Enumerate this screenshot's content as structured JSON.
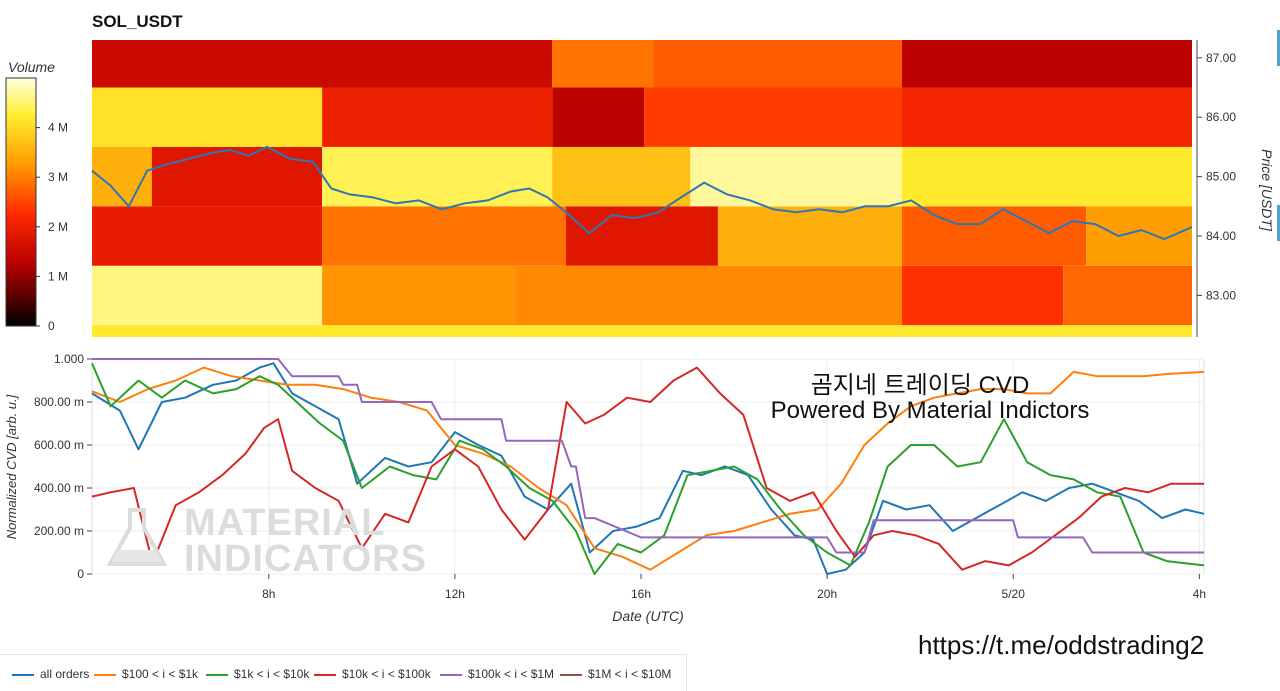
{
  "header": {
    "title": "SOL_USDT"
  },
  "overlay": {
    "line1": "곰지네 트레이딩 CVD",
    "line2": "Powered By Material Indictors",
    "link": "https://t.me/oddstrading2"
  },
  "watermark": {
    "line1": "MATERIAL",
    "line2": "INDICATORS"
  },
  "colors": {
    "all_orders": "#1f77b4",
    "r100_1k": "#ff7f0e",
    "r1k_10k": "#2ca02c",
    "r10k_100k": "#d62728",
    "r100k_1m": "#9467bd",
    "r1m_10m": "#8c564b"
  },
  "chart_data": [
    {
      "type": "heatmap",
      "title": "SOL_USDT",
      "colorbar": {
        "label": "Volume",
        "ticks": [
          "0",
          "1 M",
          "2 M",
          "3 M",
          "4 M"
        ],
        "range": [
          0,
          5000000
        ]
      },
      "y_axis": {
        "label": "Price [USDT]",
        "ticks": [
          "83.00",
          "84.00",
          "85.00",
          "86.00",
          "87.00"
        ],
        "range": [
          82.3,
          87.3
        ]
      },
      "x_range_hours": [
        4.2,
        28.1
      ],
      "price_bands": [
        {
          "low": 82.3,
          "high": 82.5,
          "segments": [
            {
              "start": 4.2,
              "end": 28.1,
              "volume": 4200000
            }
          ]
        },
        {
          "low": 82.5,
          "high": 83.5,
          "segments": [
            {
              "start": 4.2,
              "end": 9.2,
              "volume": 4600000
            },
            {
              "start": 9.2,
              "end": 13.4,
              "volume": 3200000
            },
            {
              "start": 13.4,
              "end": 21.8,
              "volume": 3100000
            },
            {
              "start": 21.8,
              "end": 25.3,
              "volume": 2300000
            },
            {
              "start": 25.3,
              "end": 28.1,
              "volume": 2800000
            }
          ]
        },
        {
          "low": 83.5,
          "high": 84.5,
          "segments": [
            {
              "start": 4.2,
              "end": 9.2,
              "volume": 1900000
            },
            {
              "start": 9.2,
              "end": 14.5,
              "volume": 2900000
            },
            {
              "start": 14.5,
              "end": 17.8,
              "volume": 1800000
            },
            {
              "start": 17.8,
              "end": 21.8,
              "volume": 3500000
            },
            {
              "start": 21.8,
              "end": 25.8,
              "volume": 2700000
            },
            {
              "start": 25.8,
              "end": 28.1,
              "volume": 3300000
            }
          ]
        },
        {
          "low": 84.5,
          "high": 85.5,
          "segments": [
            {
              "start": 4.2,
              "end": 5.5,
              "volume": 3500000
            },
            {
              "start": 5.5,
              "end": 9.2,
              "volume": 1800000
            },
            {
              "start": 9.2,
              "end": 14.2,
              "volume": 4400000
            },
            {
              "start": 14.2,
              "end": 17.2,
              "volume": 3700000
            },
            {
              "start": 17.2,
              "end": 21.8,
              "volume": 4700000
            },
            {
              "start": 21.8,
              "end": 28.1,
              "volume": 4200000
            }
          ]
        },
        {
          "low": 85.5,
          "high": 86.5,
          "segments": [
            {
              "start": 4.2,
              "end": 9.2,
              "volume": 4100000
            },
            {
              "start": 9.2,
              "end": 14.2,
              "volume": 2000000
            },
            {
              "start": 14.2,
              "end": 16.2,
              "volume": 1300000
            },
            {
              "start": 16.2,
              "end": 21.8,
              "volume": 2400000
            },
            {
              "start": 21.8,
              "end": 28.1,
              "volume": 2100000
            }
          ]
        },
        {
          "low": 86.5,
          "high": 87.3,
          "segments": [
            {
              "start": 4.2,
              "end": 14.2,
              "volume": 1500000
            },
            {
              "start": 14.2,
              "end": 16.4,
              "volume": 2900000
            },
            {
              "start": 16.4,
              "end": 21.8,
              "volume": 2700000
            },
            {
              "start": 21.8,
              "end": 28.1,
              "volume": 1300000
            }
          ]
        }
      ],
      "price_line": {
        "color": "#2e77b4",
        "x": [
          4.2,
          4.6,
          5.0,
          5.4,
          5.8,
          6.3,
          6.8,
          7.2,
          7.6,
          8.0,
          8.5,
          9.0,
          9.4,
          9.8,
          10.3,
          10.8,
          11.3,
          11.8,
          12.3,
          12.8,
          13.3,
          13.7,
          14.1,
          14.5,
          15.0,
          15.5,
          16.0,
          16.5,
          17.0,
          17.5,
          18.0,
          18.5,
          19.0,
          19.5,
          20.0,
          20.5,
          21.0,
          21.5,
          22.0,
          22.5,
          23.0,
          23.5,
          24.0,
          24.5,
          25.0,
          25.5,
          26.0,
          26.5,
          27.0,
          27.5,
          28.1
        ],
        "y": [
          85.1,
          84.85,
          84.5,
          85.1,
          85.2,
          85.3,
          85.4,
          85.45,
          85.35,
          85.5,
          85.3,
          85.25,
          84.8,
          84.7,
          84.65,
          84.55,
          84.6,
          84.45,
          84.55,
          84.6,
          84.75,
          84.8,
          84.65,
          84.4,
          84.05,
          84.35,
          84.3,
          84.4,
          84.65,
          84.9,
          84.7,
          84.6,
          84.45,
          84.4,
          84.45,
          84.4,
          84.5,
          84.5,
          84.6,
          84.35,
          84.2,
          84.2,
          84.45,
          84.25,
          84.05,
          84.25,
          84.2,
          84.0,
          84.1,
          83.95,
          84.15
        ]
      }
    },
    {
      "type": "line",
      "ylabel": "Normalized CVD [arb. u.]",
      "xlabel": "Date (UTC)",
      "y_ticks": [
        "0",
        "200.00 m",
        "400.00 m",
        "600.00 m",
        "800.00 m",
        "1.000"
      ],
      "ylim": [
        0,
        1
      ],
      "x_ticks": [
        "8h",
        "12h",
        "16h",
        "20h",
        "5/20",
        "4h"
      ],
      "x_tick_hours": [
        8,
        12,
        16,
        20,
        24,
        28
      ],
      "x_range_hours": [
        4.2,
        28.1
      ],
      "legend_position": "bottom",
      "series": [
        {
          "name": "all orders",
          "color": "#1f77b4",
          "x": [
            4.2,
            4.8,
            5.2,
            5.7,
            6.2,
            6.8,
            7.3,
            7.8,
            8.1,
            8.5,
            9.0,
            9.5,
            9.9,
            10.5,
            11.0,
            11.5,
            12.0,
            12.5,
            13.0,
            13.5,
            14.0,
            14.5,
            14.9,
            15.4,
            15.9,
            16.4,
            16.9,
            17.3,
            17.8,
            18.3,
            18.8,
            19.3,
            19.7,
            20.0,
            20.4,
            20.8,
            21.2,
            21.7,
            22.2,
            22.7,
            23.2,
            23.7,
            24.2,
            24.7,
            25.2,
            25.7,
            26.2,
            26.7,
            27.2,
            27.7,
            28.1
          ],
          "y": [
            0.84,
            0.76,
            0.58,
            0.8,
            0.82,
            0.88,
            0.9,
            0.96,
            0.98,
            0.84,
            0.78,
            0.72,
            0.42,
            0.54,
            0.5,
            0.52,
            0.66,
            0.6,
            0.55,
            0.36,
            0.3,
            0.42,
            0.1,
            0.2,
            0.22,
            0.26,
            0.48,
            0.46,
            0.5,
            0.46,
            0.3,
            0.18,
            0.16,
            0.0,
            0.02,
            0.1,
            0.34,
            0.3,
            0.32,
            0.2,
            0.26,
            0.32,
            0.38,
            0.34,
            0.4,
            0.42,
            0.38,
            0.34,
            0.26,
            0.3,
            0.28
          ]
        },
        {
          "name": "$100 < i < $1k",
          "color": "#ff7f0e",
          "x": [
            4.2,
            4.8,
            5.4,
            6.0,
            6.6,
            7.2,
            7.8,
            8.4,
            9.0,
            9.6,
            10.2,
            10.8,
            11.4,
            12.0,
            12.6,
            13.2,
            13.8,
            14.4,
            15.0,
            15.6,
            16.2,
            16.8,
            17.4,
            18.0,
            18.6,
            19.2,
            19.8,
            20.3,
            20.8,
            21.3,
            21.8,
            22.3,
            22.8,
            23.3,
            23.8,
            24.3,
            24.8,
            25.3,
            25.8,
            26.3,
            26.8,
            27.3,
            28.1
          ],
          "y": [
            0.85,
            0.8,
            0.86,
            0.9,
            0.96,
            0.92,
            0.9,
            0.88,
            0.88,
            0.86,
            0.82,
            0.8,
            0.76,
            0.6,
            0.56,
            0.5,
            0.4,
            0.32,
            0.12,
            0.08,
            0.02,
            0.1,
            0.18,
            0.2,
            0.24,
            0.28,
            0.3,
            0.42,
            0.6,
            0.7,
            0.78,
            0.82,
            0.84,
            0.86,
            0.86,
            0.84,
            0.84,
            0.94,
            0.92,
            0.92,
            0.92,
            0.93,
            0.94
          ]
        },
        {
          "name": "$1k < i < $10k",
          "color": "#2ca02c",
          "x": [
            4.2,
            4.6,
            5.2,
            5.7,
            6.2,
            6.8,
            7.3,
            7.8,
            8.2,
            8.6,
            9.1,
            9.6,
            10.0,
            10.6,
            11.1,
            11.6,
            12.1,
            12.6,
            13.1,
            13.6,
            14.1,
            14.6,
            15.0,
            15.5,
            16.0,
            16.5,
            17.0,
            17.5,
            18.0,
            18.5,
            19.0,
            19.5,
            20.0,
            20.5,
            20.9,
            21.3,
            21.8,
            22.3,
            22.8,
            23.3,
            23.8,
            24.3,
            24.8,
            25.3,
            25.8,
            26.3,
            26.8,
            27.3,
            28.1
          ],
          "y": [
            0.98,
            0.78,
            0.9,
            0.82,
            0.9,
            0.84,
            0.86,
            0.92,
            0.88,
            0.8,
            0.7,
            0.62,
            0.4,
            0.5,
            0.46,
            0.44,
            0.62,
            0.58,
            0.5,
            0.4,
            0.34,
            0.2,
            0.0,
            0.14,
            0.1,
            0.18,
            0.46,
            0.48,
            0.5,
            0.44,
            0.3,
            0.18,
            0.1,
            0.04,
            0.24,
            0.5,
            0.6,
            0.6,
            0.5,
            0.52,
            0.72,
            0.52,
            0.46,
            0.44,
            0.38,
            0.36,
            0.1,
            0.06,
            0.04
          ]
        },
        {
          "name": "$10k < i < $100k",
          "color": "#d62728",
          "x": [
            4.2,
            4.6,
            5.1,
            5.5,
            6.0,
            6.5,
            7.0,
            7.5,
            7.9,
            8.2,
            8.5,
            9.0,
            9.5,
            10.0,
            10.5,
            11.0,
            11.5,
            12.0,
            12.5,
            13.0,
            13.5,
            14.0,
            14.4,
            14.8,
            15.2,
            15.7,
            16.2,
            16.7,
            17.2,
            17.7,
            18.2,
            18.7,
            19.2,
            19.7,
            20.2,
            20.6,
            21.0,
            21.4,
            21.9,
            22.4,
            22.9,
            23.4,
            23.9,
            24.4,
            24.9,
            25.4,
            25.9,
            26.4,
            26.9,
            27.4,
            28.1
          ],
          "y": [
            0.36,
            0.38,
            0.4,
            0.05,
            0.32,
            0.38,
            0.46,
            0.56,
            0.68,
            0.72,
            0.48,
            0.4,
            0.34,
            0.12,
            0.28,
            0.24,
            0.5,
            0.58,
            0.5,
            0.3,
            0.16,
            0.3,
            0.8,
            0.7,
            0.74,
            0.82,
            0.8,
            0.9,
            0.96,
            0.84,
            0.74,
            0.4,
            0.34,
            0.38,
            0.2,
            0.08,
            0.18,
            0.2,
            0.18,
            0.14,
            0.02,
            0.06,
            0.04,
            0.1,
            0.18,
            0.26,
            0.36,
            0.4,
            0.38,
            0.42,
            0.42
          ]
        },
        {
          "name": "$100k < i < $1M",
          "color": "#9467bd",
          "x": [
            4.2,
            8.2,
            8.5,
            9.5,
            9.6,
            9.9,
            10.0,
            11.5,
            11.7,
            13.0,
            13.1,
            14.3,
            14.5,
            14.6,
            14.8,
            15.0,
            16.0,
            20.0,
            20.2,
            20.8,
            21.0,
            24.0,
            24.1,
            25.5,
            25.7,
            26.8,
            27.0,
            28.1
          ],
          "y": [
            1.0,
            1.0,
            0.92,
            0.92,
            0.88,
            0.88,
            0.8,
            0.8,
            0.72,
            0.72,
            0.62,
            0.62,
            0.5,
            0.5,
            0.26,
            0.26,
            0.17,
            0.17,
            0.1,
            0.1,
            0.25,
            0.25,
            0.17,
            0.17,
            0.1,
            0.1,
            0.1,
            0.1
          ]
        },
        {
          "name": "$1M < i < $10M",
          "color": "#8c564b",
          "x": [],
          "y": []
        }
      ]
    }
  ]
}
